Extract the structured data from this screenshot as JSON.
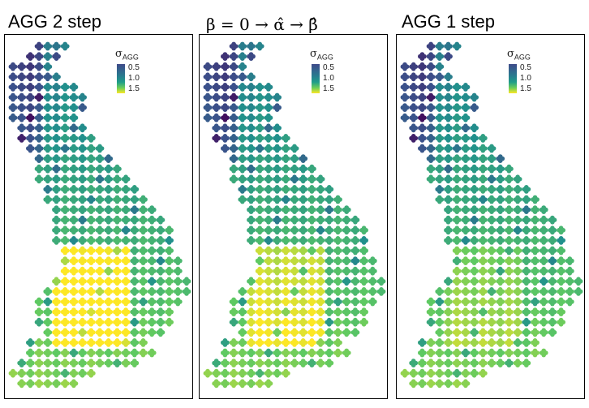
{
  "chart_data": [
    {
      "type": "scatter",
      "title": "AGG 2 step",
      "legend_title": "σ",
      "legend_sub": "AGG",
      "legend_ticks": [
        "0.5",
        "1.0",
        "1.5"
      ],
      "legend_placement": "top-right",
      "colorscale": "viridis",
      "grid": false
    },
    {
      "type": "scatter",
      "title": "β = 0 → α̂ → β̂",
      "legend_title": "σ",
      "legend_sub": "AGG",
      "legend_ticks": [
        "0.5",
        "1.0",
        "1.5"
      ],
      "legend_placement": "top-right",
      "colorscale": "viridis",
      "grid": false
    },
    {
      "type": "scatter",
      "title": "AGG 1 step",
      "legend_title": "σ",
      "legend_sub": "AGG",
      "legend_ticks": [
        "0.5",
        "1.0",
        "1.5"
      ],
      "legend_placement": "top-right",
      "colorscale": "viridis",
      "grid": false
    }
  ]
}
